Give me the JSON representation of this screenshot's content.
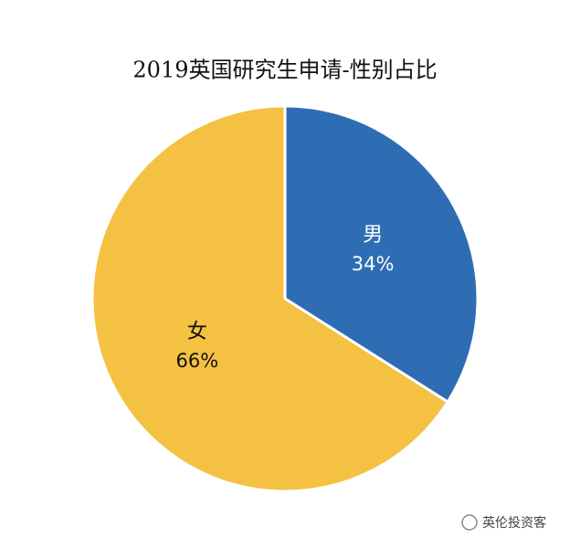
{
  "chart_data": {
    "type": "pie",
    "title": "2019英国研究生申请-性别占比",
    "categories": [
      "男",
      "女"
    ],
    "values": [
      34,
      66
    ],
    "value_labels": [
      "34%",
      "66%"
    ],
    "colors": [
      "#2e6db4",
      "#f4c142"
    ],
    "source": "英伦投资客"
  }
}
